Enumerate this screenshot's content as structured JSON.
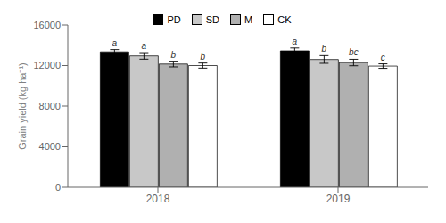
{
  "chart_data": {
    "type": "bar",
    "categories": [
      "2018",
      "2019"
    ],
    "series": [
      {
        "name": "PD",
        "color": "#000000",
        "values": [
          13350,
          13450
        ],
        "errors": [
          220,
          280
        ],
        "letters": [
          "a",
          "a"
        ]
      },
      {
        "name": "SD",
        "color": "#c8c8c8",
        "values": [
          12950,
          12600
        ],
        "errors": [
          320,
          380
        ],
        "letters": [
          "a",
          "b"
        ]
      },
      {
        "name": "M",
        "color": "#b0b0b0",
        "values": [
          12150,
          12300
        ],
        "errors": [
          280,
          320
        ],
        "letters": [
          "b",
          "bc"
        ]
      },
      {
        "name": "CK",
        "color": "#ffffff",
        "values": [
          12000,
          11950
        ],
        "errors": [
          250,
          220
        ],
        "letters": [
          "b",
          "c"
        ]
      }
    ],
    "ylabel": "Grain yield (kg ha⁻¹)",
    "ylim": [
      0,
      16000
    ],
    "yticks": [
      0,
      4000,
      8000,
      12000,
      16000
    ],
    "grid": false,
    "legend": "top"
  }
}
